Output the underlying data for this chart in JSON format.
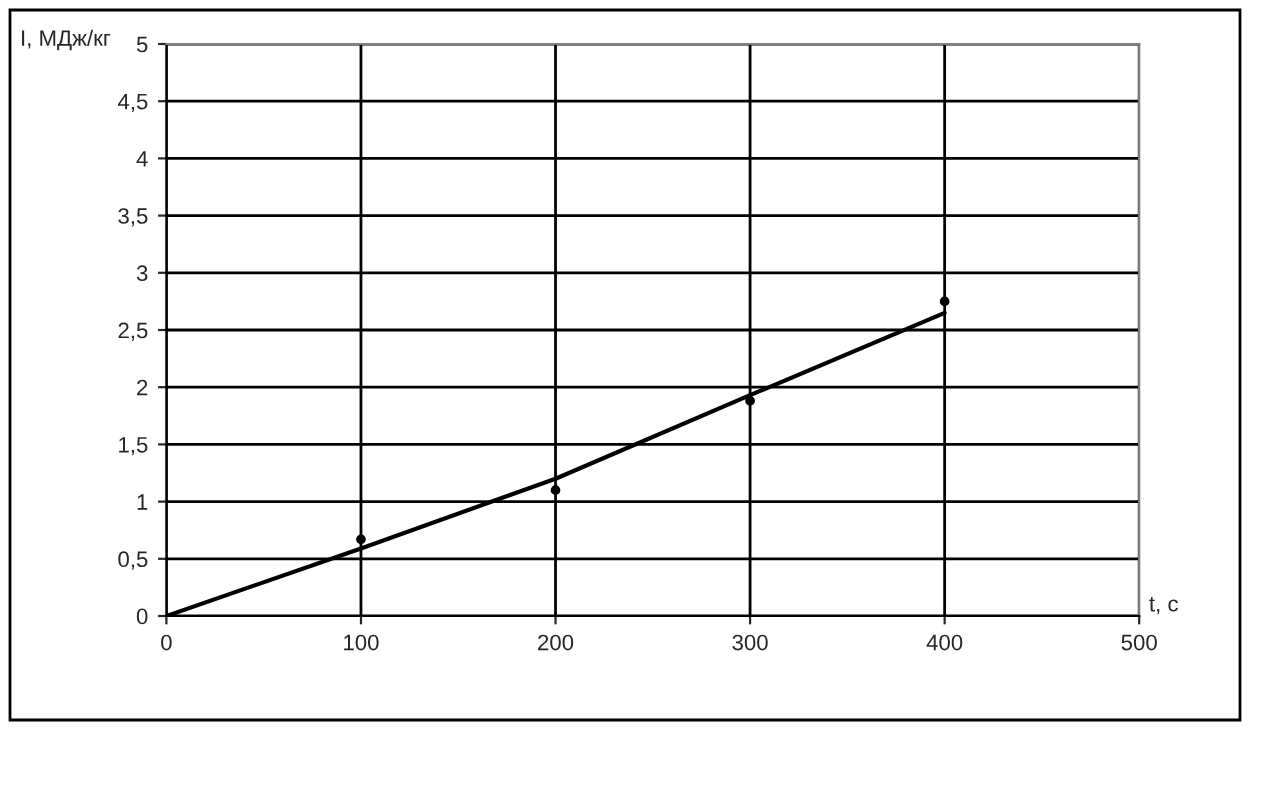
{
  "chart_data": {
    "type": "scatter",
    "xlabel": "t, с",
    "ylabel": "I, МДж/кг",
    "xlim": [
      0,
      500
    ],
    "xticks": [
      0,
      100,
      200,
      300,
      400,
      500
    ],
    "ylim": [
      0,
      5
    ],
    "yticks": [
      {
        "value": 0,
        "label": "0"
      },
      {
        "value": 0.5,
        "label": "0,5"
      },
      {
        "value": 1,
        "label": "1"
      },
      {
        "value": 1.5,
        "label": "1,5"
      },
      {
        "value": 2,
        "label": "2"
      },
      {
        "value": 2.5,
        "label": "2,5"
      },
      {
        "value": 3,
        "label": "3"
      },
      {
        "value": 3.5,
        "label": "3,5"
      },
      {
        "value": 4,
        "label": "4"
      },
      {
        "value": 4.5,
        "label": "4,5"
      },
      {
        "value": 5,
        "label": "5"
      }
    ],
    "grid": true,
    "series": [
      {
        "color": "#000000",
        "marker": "circle",
        "x": [
          100,
          200,
          300,
          400
        ],
        "values": [
          0.67,
          1.1,
          1.88,
          2.75
        ]
      },
      {
        "type": "line",
        "color": "#000000",
        "x": [
          0,
          100,
          200,
          300,
          400
        ],
        "values": [
          0,
          0.59,
          1.2,
          1.93,
          2.65
        ]
      }
    ]
  }
}
